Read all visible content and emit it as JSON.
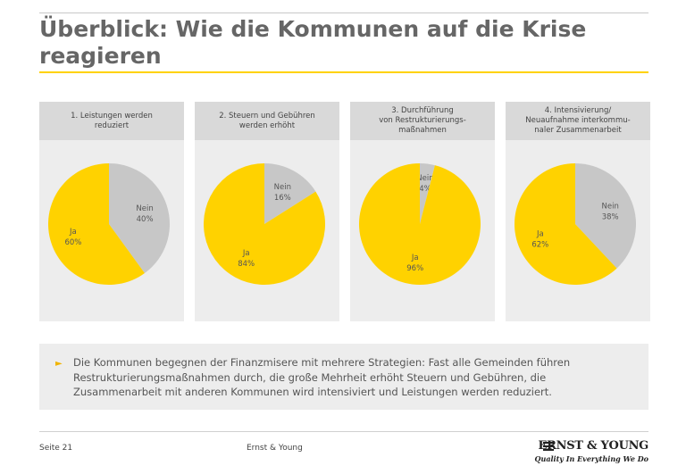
{
  "header": {
    "title": "Überblick: Wie die Kommunen auf die Krise reagieren"
  },
  "chart_data": [
    {
      "type": "pie",
      "title": "1. Leistungen werden\nreduziert",
      "slices": [
        {
          "label": "Nein",
          "value": 40,
          "value_label": "40%",
          "color": "#c7c7c7"
        },
        {
          "label": "Ja",
          "value": 60,
          "value_label": "60%",
          "color": "#ffd200"
        }
      ]
    },
    {
      "type": "pie",
      "title": "2. Steuern und Gebühren\nwerden erhöht",
      "slices": [
        {
          "label": "Nein",
          "value": 16,
          "value_label": "16%",
          "color": "#c7c7c7"
        },
        {
          "label": "Ja",
          "value": 84,
          "value_label": "84%",
          "color": "#ffd200"
        }
      ]
    },
    {
      "type": "pie",
      "title": "3. Durchführung\nvon Restrukturierungs-\nmaßnahmen",
      "slices": [
        {
          "label": "Nein",
          "value": 4,
          "value_label": "4%",
          "color": "#c7c7c7"
        },
        {
          "label": "Ja",
          "value": 96,
          "value_label": "96%",
          "color": "#ffd200"
        }
      ]
    },
    {
      "type": "pie",
      "title": "4. Intensivierung/\nNeuaufnahme interkommu-\nnaler Zusammenarbeit",
      "slices": [
        {
          "label": "Nein",
          "value": 38,
          "value_label": "38%",
          "color": "#c7c7c7"
        },
        {
          "label": "Ja",
          "value": 62,
          "value_label": "62%",
          "color": "#ffd200"
        }
      ]
    }
  ],
  "note": {
    "bullet": "►",
    "text": "Die Kommunen begegnen der Finanzmisere mit mehrere Strategien: Fast alle Gemeinden führen Restrukturierungsmaßnahmen durch, die große Mehrheit erhöht Steuern und Gebühren, die Zusammenarbeit mit anderen Kommunen wird intensiviert und Leistungen werden reduziert."
  },
  "footer": {
    "page": "Seite 21",
    "company": "Ernst & Young",
    "logo_text": "ERNST & YOUNG",
    "tagline": "Quality In Everything We Do"
  },
  "colors": {
    "accent": "#ffd200",
    "secondary": "#c7c7c7",
    "panel_bg": "#ededed",
    "panel_head": "#d9d9d9"
  }
}
